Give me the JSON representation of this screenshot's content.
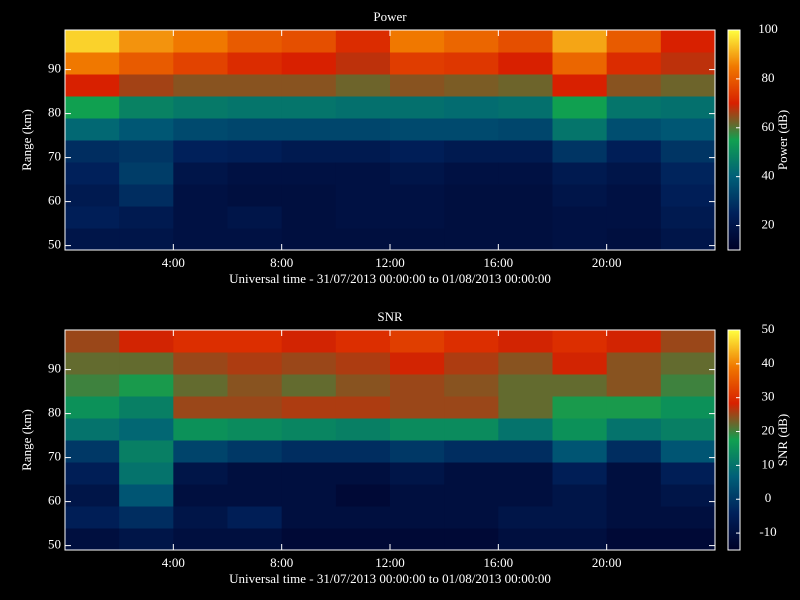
{
  "chart_data": [
    {
      "type": "heatmap",
      "title": "Power",
      "xlabel": "Universal time - 31/07/2013 00:00:00 to 01/08/2013 00:00:00",
      "ylabel": "Range (km)",
      "colorbar_label": "Power (dB)",
      "x": [
        1,
        3,
        5,
        7,
        9,
        11,
        13,
        15,
        17,
        19,
        21,
        23
      ],
      "y": [
        51.5,
        56.5,
        61.5,
        66.5,
        71.5,
        76.5,
        81.5,
        86.5,
        91.5,
        96.5
      ],
      "z": [
        [
          20,
          20,
          18,
          18,
          17,
          17,
          17,
          17,
          17,
          18,
          17,
          20
        ],
        [
          24,
          22,
          18,
          20,
          17,
          18,
          18,
          17,
          17,
          18,
          18,
          22
        ],
        [
          22,
          28,
          18,
          17,
          17,
          18,
          18,
          17,
          17,
          20,
          18,
          24
        ],
        [
          25,
          32,
          20,
          18,
          18,
          18,
          20,
          18,
          18,
          22,
          20,
          26
        ],
        [
          28,
          30,
          25,
          24,
          22,
          22,
          24,
          22,
          22,
          30,
          24,
          30
        ],
        [
          42,
          38,
          35,
          34,
          34,
          34,
          35,
          35,
          34,
          45,
          36,
          38
        ],
        [
          55,
          48,
          46,
          45,
          45,
          44,
          44,
          43,
          44,
          55,
          45,
          44
        ],
        [
          70,
          66,
          64,
          64,
          64,
          62,
          64,
          63,
          62,
          70,
          64,
          62
        ],
        [
          85,
          80,
          76,
          72,
          70,
          68,
          75,
          74,
          70,
          82,
          72,
          68
        ],
        [
          95,
          88,
          85,
          80,
          78,
          72,
          85,
          82,
          78,
          90,
          80,
          70
        ]
      ],
      "xlim": [
        0,
        24
      ],
      "xticks": [
        {
          "value": 4,
          "label": "4:00"
        },
        {
          "value": 8,
          "label": "8:00"
        },
        {
          "value": 12,
          "label": "12:00"
        },
        {
          "value": 16,
          "label": "16:00"
        },
        {
          "value": 20,
          "label": "20:00"
        }
      ],
      "ylim": [
        49,
        99
      ],
      "yticks": [
        50,
        60,
        70,
        80,
        90
      ],
      "zlim": [
        10,
        100
      ],
      "zticks": [
        20,
        40,
        60,
        80,
        100
      ],
      "colormap": [
        "#000028",
        "#00205a",
        "#005f78",
        "#10a050",
        "#d82000",
        "#f07800",
        "#ffff40"
      ]
    },
    {
      "type": "heatmap",
      "title": "SNR",
      "xlabel": "Universal time - 31/07/2013 00:00:00 to 01/08/2013 00:00:00",
      "ylabel": "Range (km)",
      "colorbar_label": "SNR (dB)",
      "x": [
        1,
        3,
        5,
        7,
        9,
        11,
        13,
        15,
        17,
        19,
        21,
        23
      ],
      "y": [
        51.5,
        56.5,
        61.5,
        66.5,
        71.5,
        76.5,
        81.5,
        86.5,
        91.5,
        96.5
      ],
      "z": [
        [
          -10,
          -8,
          -10,
          -10,
          -12,
          -12,
          -12,
          -12,
          -10,
          -10,
          -12,
          -12
        ],
        [
          -5,
          -2,
          -8,
          -5,
          -10,
          -10,
          -10,
          -10,
          -8,
          -8,
          -10,
          -10
        ],
        [
          -8,
          5,
          -10,
          -10,
          -10,
          -12,
          -10,
          -10,
          -10,
          -8,
          -10,
          -8
        ],
        [
          -5,
          10,
          -8,
          -10,
          -10,
          -10,
          -8,
          -10,
          -10,
          -5,
          -10,
          -5
        ],
        [
          0,
          12,
          2,
          0,
          -2,
          -2,
          0,
          -2,
          -2,
          5,
          -2,
          5
        ],
        [
          10,
          8,
          15,
          14,
          13,
          12,
          14,
          14,
          10,
          15,
          10,
          12
        ],
        [
          15,
          12,
          25,
          25,
          26,
          26,
          25,
          25,
          22,
          18,
          18,
          15
        ],
        [
          20,
          18,
          22,
          24,
          22,
          24,
          25,
          24,
          22,
          22,
          24,
          20
        ],
        [
          22,
          22,
          25,
          26,
          25,
          26,
          28,
          26,
          24,
          28,
          24,
          22
        ],
        [
          25,
          28,
          30,
          30,
          28,
          30,
          32,
          30,
          28,
          30,
          28,
          25
        ]
      ],
      "xlim": [
        0,
        24
      ],
      "xticks": [
        {
          "value": 4,
          "label": "4:00"
        },
        {
          "value": 8,
          "label": "8:00"
        },
        {
          "value": 12,
          "label": "12:00"
        },
        {
          "value": 16,
          "label": "16:00"
        },
        {
          "value": 20,
          "label": "20:00"
        }
      ],
      "ylim": [
        49,
        99
      ],
      "yticks": [
        50,
        60,
        70,
        80,
        90
      ],
      "zlim": [
        -15,
        50
      ],
      "zticks": [
        -10,
        0,
        10,
        20,
        30,
        40,
        50
      ],
      "colormap": [
        "#000028",
        "#00205a",
        "#005f78",
        "#10a050",
        "#d82000",
        "#f07800",
        "#ffff40"
      ]
    }
  ]
}
